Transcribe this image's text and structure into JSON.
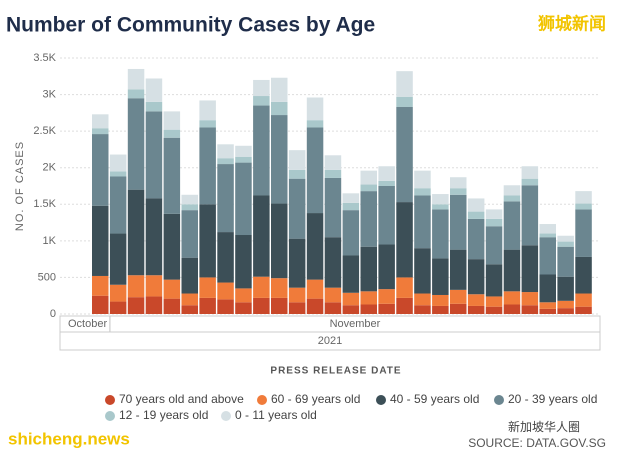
{
  "chart_data": {
    "type": "stacked_bar",
    "title": "Number of Community Cases by Age",
    "ylabel": "NO. OF CASES",
    "xlabel": "PRESS RELEASE DATE",
    "watermark_top": "狮城新闻",
    "watermark_bottom": "shicheng.news",
    "wechat_label": "新加坡华人圈",
    "source": "SOURCE: DATA.GOV.SG",
    "year_label": "2021",
    "month_groups": [
      {
        "label": "October",
        "count": 1
      },
      {
        "label": "November",
        "count": 27
      }
    ],
    "categories": [
      null,
      null,
      null,
      null,
      null,
      null,
      null,
      null,
      null,
      null,
      null,
      null,
      null,
      null,
      null,
      null,
      null,
      null,
      null,
      null,
      null,
      null,
      null,
      null,
      null,
      null,
      null,
      null
    ],
    "ylim": [
      0,
      3500
    ],
    "yticks": [
      0,
      500,
      {
        "value": 1000,
        "label": "1K"
      },
      {
        "value": 1500,
        "label": "1.5K"
      },
      {
        "value": 2000,
        "label": "2K"
      },
      {
        "value": 2500,
        "label": "2.5K"
      },
      {
        "value": 3000,
        "label": "3K"
      },
      {
        "value": 3500,
        "label": "3.5K"
      }
    ],
    "grid": true,
    "series": [
      {
        "name": "70 years old and above",
        "color": "#c9482a",
        "values": [
          250,
          170,
          230,
          240,
          210,
          120,
          220,
          200,
          160,
          220,
          220,
          160,
          210,
          160,
          120,
          130,
          140,
          220,
          120,
          110,
          140,
          110,
          100,
          130,
          120,
          70,
          80,
          100
        ]
      },
      {
        "name": "60 - 69 years old",
        "color": "#f07b3a",
        "values": [
          270,
          230,
          300,
          290,
          260,
          160,
          280,
          230,
          190,
          290,
          270,
          200,
          260,
          200,
          170,
          180,
          200,
          280,
          160,
          150,
          190,
          160,
          140,
          180,
          180,
          90,
          100,
          180
        ]
      },
      {
        "name": "40 - 59 years old",
        "color": "#3c4f57",
        "values": [
          960,
          700,
          1170,
          1050,
          900,
          490,
          1000,
          690,
          730,
          1110,
          1020,
          670,
          910,
          690,
          510,
          610,
          610,
          1030,
          620,
          500,
          550,
          480,
          440,
          570,
          640,
          380,
          330,
          500
        ]
      },
      {
        "name": "20 - 39 years old",
        "color": "#6b8690",
        "values": [
          980,
          780,
          1250,
          1190,
          1040,
          650,
          1050,
          930,
          990,
          1230,
          1210,
          820,
          1170,
          810,
          620,
          760,
          800,
          1300,
          720,
          670,
          750,
          550,
          520,
          660,
          820,
          510,
          410,
          650
        ]
      },
      {
        "name": "12 - 19 years old",
        "color": "#a9c8cb",
        "values": [
          80,
          70,
          120,
          130,
          110,
          80,
          100,
          80,
          80,
          130,
          180,
          120,
          100,
          110,
          100,
          90,
          70,
          140,
          100,
          70,
          90,
          100,
          100,
          80,
          90,
          50,
          70,
          80
        ]
      },
      {
        "name": "0 - 11 years old",
        "color": "#d6e0e4",
        "values": [
          190,
          230,
          280,
          320,
          250,
          130,
          270,
          190,
          150,
          220,
          330,
          270,
          310,
          200,
          130,
          190,
          200,
          350,
          240,
          140,
          150,
          180,
          130,
          140,
          170,
          130,
          80,
          170
        ]
      }
    ]
  }
}
